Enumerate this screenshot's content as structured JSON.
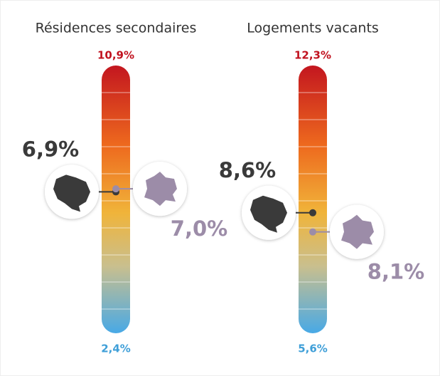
{
  "chart_data": [
    {
      "type": "gauge",
      "title": "Résidences secondaires",
      "ylim": [
        2.4,
        10.9
      ],
      "yticks": [
        {
          "value": 2.4,
          "label": "2,4%"
        },
        {
          "value": 10.9,
          "label": "10,9%"
        }
      ],
      "values": [
        6.9,
        7.0
      ],
      "value_labels": [
        "6,9%",
        "7,0%"
      ],
      "colors": [
        "#3a3a3a",
        "#9c8ca8"
      ]
    },
    {
      "type": "gauge",
      "title": "Logements vacants",
      "ylim": [
        5.6,
        12.3
      ],
      "yticks": [
        {
          "value": 5.6,
          "label": "5,6%"
        },
        {
          "value": 12.3,
          "label": "12,3%"
        }
      ],
      "values": [
        8.6,
        8.1
      ],
      "value_labels": [
        "8,6%",
        "8,1%"
      ],
      "colors": [
        "#3a3a3a",
        "#9c8ca8"
      ]
    }
  ]
}
